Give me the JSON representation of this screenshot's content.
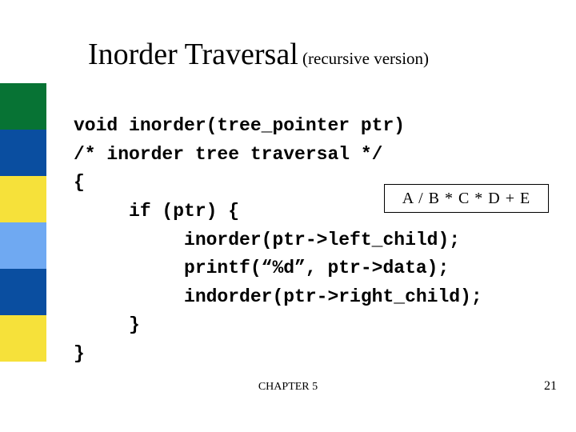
{
  "title": {
    "main": "Inorder Traversal",
    "sub": " (recursive version)"
  },
  "sidebar": {
    "colors": [
      "#077334",
      "#0a4ea0",
      "#f6e13a",
      "#6fa9f2",
      "#0a4ea0",
      "#f6e13a"
    ]
  },
  "code": {
    "l1": "void inorder(tree_pointer ptr)",
    "l2": "/* inorder tree traversal */",
    "l3": "{",
    "l4": "     if (ptr) {",
    "l5": "          inorder(ptr->left_child);",
    "l6": "          printf(“%d”, ptr->data);",
    "l7": "          indorder(ptr->right_child);",
    "l8": "     }",
    "l9": "}"
  },
  "expression": "A / B * C * D + E",
  "footer": {
    "chapter": "CHAPTER 5",
    "page": "21"
  }
}
